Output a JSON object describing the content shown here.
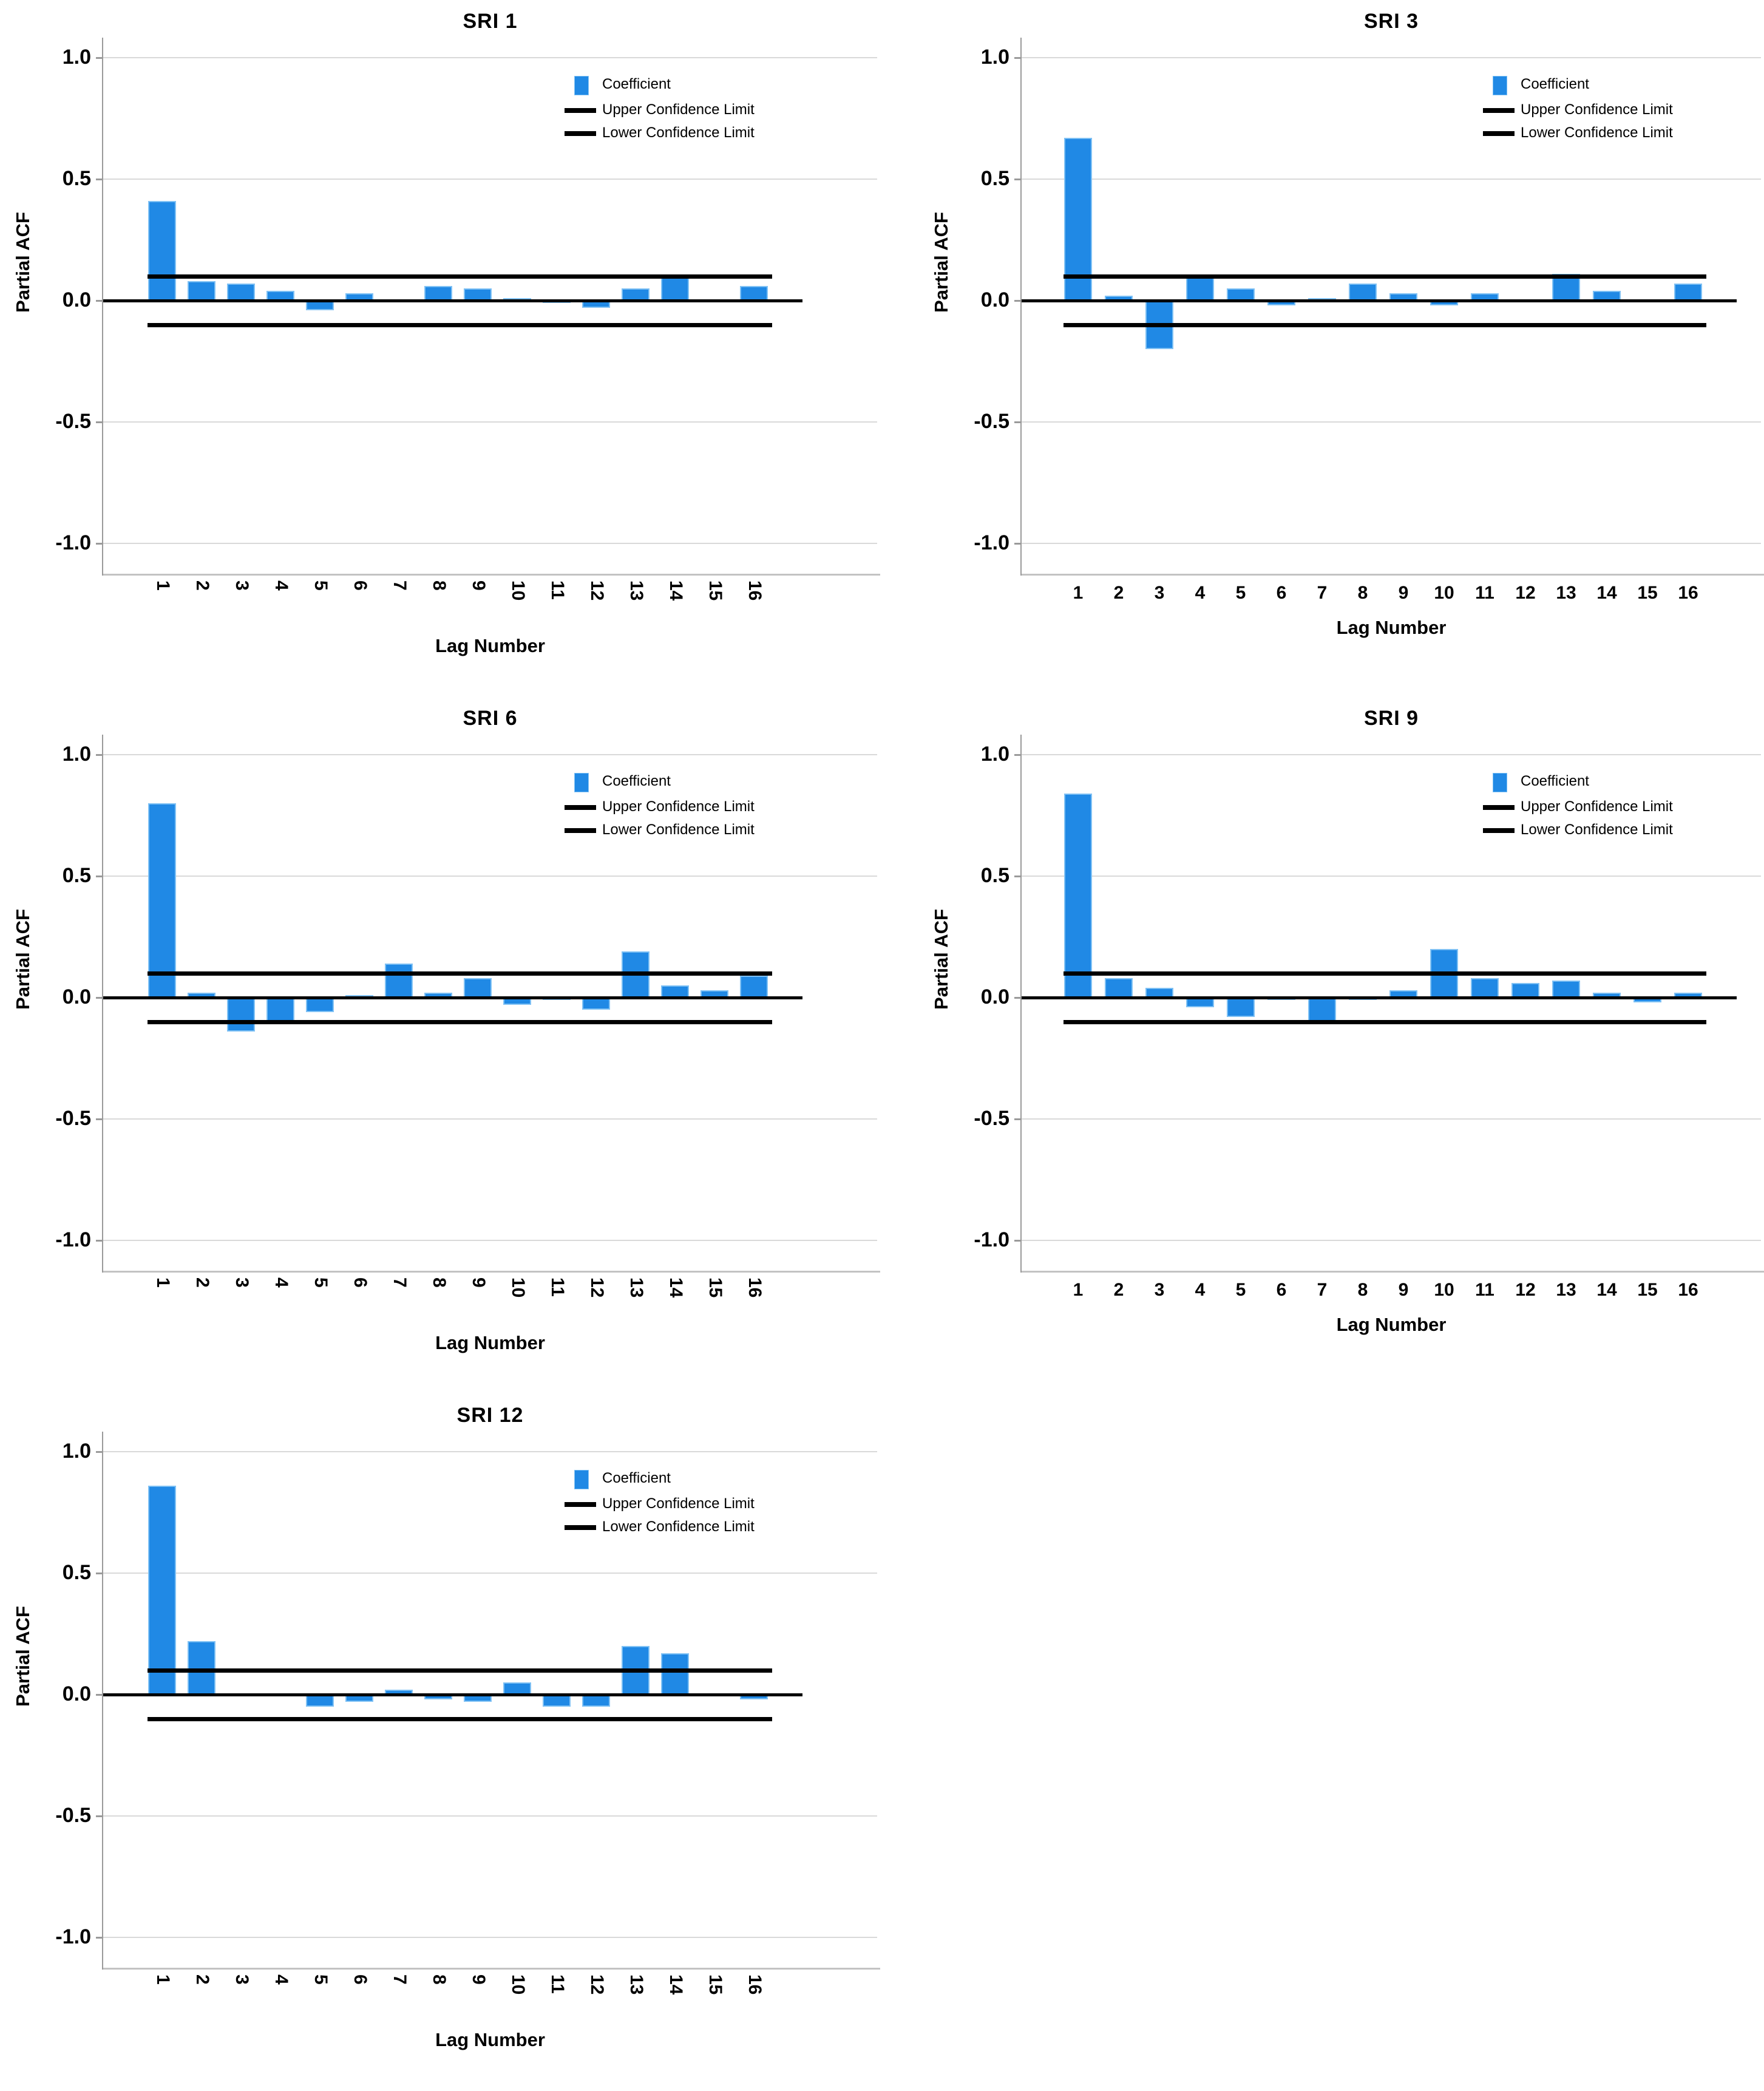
{
  "figure": {
    "background": "#ffffff",
    "description": "Partial autocorrelation function plots for five SRI series"
  },
  "colors": {
    "bar": "#2089e5",
    "bar_border": "#7fc1f4",
    "confidence_line": "#000000",
    "zero_line": "#000000",
    "gridline": "#d9d9d9",
    "axis": "#9a9a9a"
  },
  "legend": {
    "items": [
      {
        "label": "Coefficient",
        "swatch": "blue-rect"
      },
      {
        "label": "Upper Confidence Limit",
        "swatch": "black-line"
      },
      {
        "label": "Lower Confidence Limit",
        "swatch": "black-line"
      }
    ]
  },
  "chart_data": {
    "type": "bar",
    "categories": [
      "1",
      "2",
      "3",
      "4",
      "5",
      "6",
      "7",
      "8",
      "9",
      "10",
      "11",
      "12",
      "13",
      "14",
      "15",
      "16"
    ],
    "xlabel": "Lag Number",
    "ylabel": "Partial ACF",
    "ylim": [
      -1.0,
      1.0
    ],
    "yticks": [
      "1.0",
      "0.5",
      "0.0",
      "-0.5",
      "-1.0"
    ],
    "ytick_values": [
      1.0,
      0.5,
      0.0,
      -0.5,
      -1.0
    ],
    "upper_confidence_limit": 0.1,
    "lower_confidence_limit": -0.1,
    "grid": "horizontal-light-gridlines",
    "legend_position": "inside-top-right",
    "charts": [
      {
        "title": "SRI 1",
        "x_tick_rotated": true,
        "values": [
          0.41,
          0.08,
          0.07,
          0.04,
          -0.04,
          0.03,
          0.0,
          0.06,
          0.05,
          0.01,
          -0.01,
          -0.03,
          0.05,
          0.1,
          0.0,
          0.06
        ]
      },
      {
        "title": "SRI 3",
        "x_tick_rotated": false,
        "values": [
          0.67,
          0.02,
          -0.2,
          0.1,
          0.05,
          -0.02,
          0.01,
          0.07,
          0.03,
          -0.02,
          0.03,
          0.0,
          0.11,
          0.04,
          0.0,
          0.07
        ]
      },
      {
        "title": "SRI 6",
        "x_tick_rotated": true,
        "values": [
          0.8,
          0.02,
          -0.14,
          -0.1,
          -0.06,
          0.01,
          0.14,
          0.02,
          0.08,
          -0.03,
          -0.01,
          -0.05,
          0.19,
          0.05,
          0.03,
          0.09
        ]
      },
      {
        "title": "SRI 9",
        "x_tick_rotated": false,
        "values": [
          0.84,
          0.08,
          0.04,
          -0.04,
          -0.08,
          -0.01,
          -0.1,
          -0.01,
          0.03,
          0.2,
          0.08,
          0.06,
          0.07,
          0.02,
          -0.02,
          0.02
        ]
      },
      {
        "title": "SRI 12",
        "x_tick_rotated": true,
        "values": [
          0.86,
          0.22,
          0.0,
          0.0,
          -0.05,
          -0.03,
          0.02,
          -0.02,
          -0.03,
          0.05,
          -0.05,
          -0.05,
          0.2,
          0.17,
          0.0,
          -0.02
        ]
      }
    ]
  }
}
